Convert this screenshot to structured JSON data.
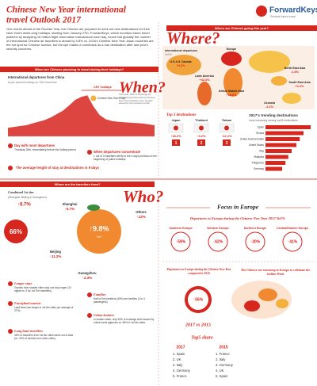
{
  "header": {
    "title_line1": "Chinese New Year international",
    "title_line2": "travel Outlook 2017",
    "brand": "ForwardKeys",
    "brand_tagline": "Predicts future travel",
    "intro": "One month ahead of the Rooster Year, the Chinese are prepared to seek out new destinations for their New Year's week-long holidays, starting from January 27th. ForwardKeys, which monitors future travel patterns by analyzing 16 million flight reservation transactions each day, found that globally the number of international Chinese air travellers is ahead by 9.8% vs. 2016's Chinese New Year. Asian countries are the hot spot for Chinese tourists, but Europe makes a comeback as a star destination after last year's security concerns."
  },
  "when": {
    "banner": "When are Chinese planning to travel during their holidays?",
    "heading": "When?",
    "chart_label": "International departures from China",
    "chart_sublabel": "as per issued bookings on 19th December",
    "series": {
      "values": [
        20,
        22,
        24,
        26,
        30,
        34,
        38,
        44,
        52,
        60,
        72,
        85,
        92,
        96,
        70,
        50,
        40,
        36,
        34,
        33,
        32,
        31,
        30,
        28,
        26
      ],
      "ylim": [
        0,
        100
      ],
      "color": "#d7261e"
    },
    "annotations": [
      "CNY holidays",
      "Chinese New Year's Day"
    ],
    "note": "Last year, 79% of bookings for international travel during Chinese New Year holidays were already issued by the previous month",
    "items": [
      {
        "title": "Day with most departures",
        "text": "Thursday 26th, immediately before the holiday period"
      },
      {
        "title": "When departures concentrate",
        "text": "1 out of 3 travellers will fly in the 4 days previous to the beginning of public holidays"
      }
    ],
    "stay": "The average length of stay at destinations is 9 days"
  },
  "where": {
    "banner": "Where are Chinese going this year?",
    "heading": "Where?",
    "map_label": "International departures",
    "map_sublabel": "YoY%",
    "regions": [
      {
        "name": "Europe",
        "value": "+68.5%"
      },
      {
        "name": "North East Asia",
        "value": "-1.8%"
      },
      {
        "name": "South East Asia",
        "value": "+2.2%"
      },
      {
        "name": "Oceania",
        "value": "-2.1%"
      },
      {
        "name": "Africa/ Middle East",
        "value": "+18.6%"
      },
      {
        "name": "Latin America",
        "value": "+42.3%"
      },
      {
        "name": "U.S.A & Canada",
        "value": "+3.3%"
      }
    ],
    "top3_title": "Top 3 destinations",
    "top3": [
      {
        "name": "Japan",
        "change": "↑18.2%",
        "rank": "1"
      },
      {
        "name": "Thailand",
        "change": "↑3.2%",
        "rank": "2"
      },
      {
        "name": "Taiwan",
        "change": "↓12.1%",
        "rank": "3"
      }
    ],
    "trending": {
      "type": "bar",
      "title": "2017's trending destinations",
      "subtitle": "most increasing among top25 destinations",
      "categories": [
        "Spain",
        "Russia",
        "United Arab Emirates",
        "United States",
        "Italy",
        "Malaysia",
        "Philippines",
        "Germany"
      ],
      "values": [
        95,
        80,
        72,
        65,
        55,
        48,
        42,
        35
      ],
      "xlim": [
        0,
        100
      ],
      "color": "#d7261e"
    }
  },
  "who": {
    "banner": "Where are the travellers from?",
    "heading": "Who?",
    "tier_label": "Combined 1st tier",
    "tier_sub": "(Shanghai, Beijing & Guangzhou)",
    "tier_change": "↑8.7%",
    "tier_share": "66%",
    "center_change": "↑9.8%",
    "center_label": "YoY",
    "cities": [
      {
        "name": "Shanghai",
        "change": "↑6.7%"
      },
      {
        "name": "Beijing",
        "change": "↑11.2%"
      },
      {
        "name": "Guangzhou",
        "change": "↑2.3%"
      },
      {
        "name": "Others",
        "change": "↑12%"
      }
    ],
    "traits": [
      {
        "title": "Longer stays",
        "text": "Tourists from smaller cities stay one day longer (10 nights vs. 9 for 1st Tier travellers)."
      },
      {
        "title": "Families",
        "text": "Half of the travellers (45%) are families (2 to 4 passengers)."
      },
      {
        "title": "Farsighted tourists",
        "text": "Lead times are longer in 1st tier cities (an average of 37%)."
      },
      {
        "title": "Urban bookers",
        "text": "In smaller cities, only 53% of bookings were issued by online travel agencies vs. 66% in 1st tier cities."
      },
      {
        "title": "Long haul travellers",
        "text": "46% of travellers from 1st tier cities travel out of Asia (vs. 33% of tourists from other cities)."
      }
    ]
  },
  "europe": {
    "heading": "Focus in Europe",
    "departures_title": "Departures to Europe during the Chinese New Year 2017 YoY%",
    "regions": [
      {
        "name": "Southern Europe",
        "change": "↑59%"
      },
      {
        "name": "Western Europe",
        "change": "↑62%"
      },
      {
        "name": "Northern Europe",
        "change": "↑30%"
      },
      {
        "name": "Central/Eastern Europe",
        "change": "↑41%"
      }
    ],
    "compare_title": "Departures to Europe during the Chinese New Year compared to 2016",
    "compare_value": "↑56%",
    "returning": "The Chinese are returning to Europe to celebrate the Golden Week",
    "vs_title": "2017 vs 2015",
    "top5_title": "Top5 share",
    "years": [
      "2017",
      "2015"
    ],
    "top5_2017": [
      "1. Spain",
      "2. UK",
      "3. Italy",
      "4. Germany",
      "5. France"
    ],
    "top5_2015": [
      "1. France",
      "2. Italy",
      "3. Germany",
      "4. UK",
      "5. Spain"
    ]
  }
}
